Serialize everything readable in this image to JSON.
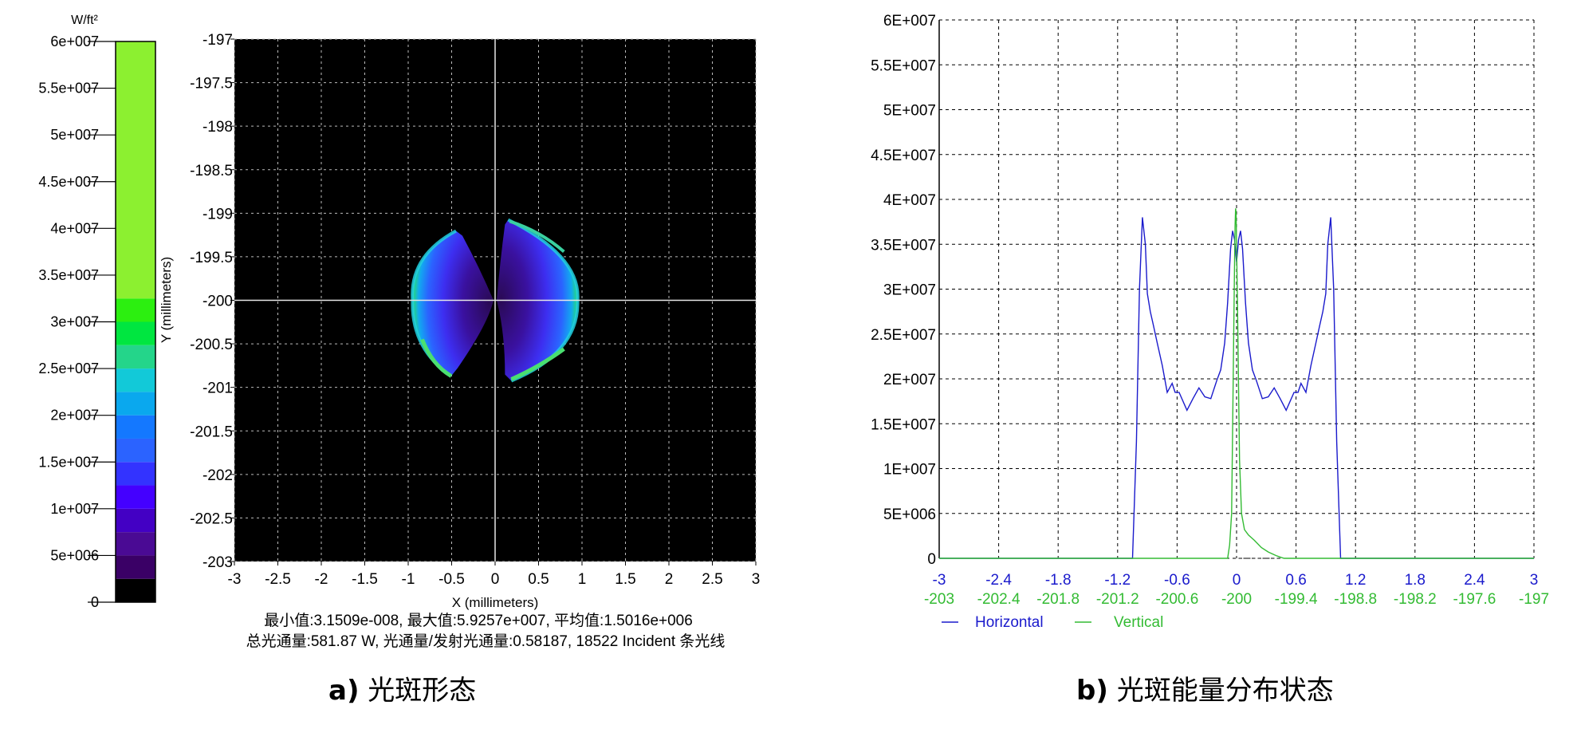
{
  "chart_data": [
    {
      "type": "heatmap",
      "colorbar": {
        "unit": "W/ft²",
        "ticks": [
          "0",
          "5e+006",
          "1e+007",
          "1.5e+007",
          "2e+007",
          "2.5e+007",
          "3e+007",
          "3.5e+007",
          "4e+007",
          "4.5e+007",
          "5e+007",
          "5.5e+007",
          "6e+007"
        ],
        "range": [
          0,
          60000000
        ],
        "colors": [
          "#000000",
          "#3a0066",
          "#4a0a94",
          "#4300c4",
          "#4400ff",
          "#3333ff",
          "#2b63ff",
          "#1478ff",
          "#0aa8ee",
          "#12c9d8",
          "#24d58a",
          "#00e640",
          "#2cef10",
          "#8cf030"
        ]
      },
      "xlabel": "X (millimeters)",
      "ylabel": "Y (millimeters)",
      "xlim": [
        -3,
        3
      ],
      "ylim": [
        -203,
        -197
      ],
      "xticks": [
        "-3",
        "-2.5",
        "-2",
        "-1.5",
        "-1",
        "-0.5",
        "0",
        "0.5",
        "1",
        "1.5",
        "2",
        "2.5",
        "3"
      ],
      "yticks": [
        "-197",
        "-197.5",
        "-198",
        "-198.5",
        "-199",
        "-199.5",
        "-200",
        "-200.5",
        "-201",
        "-201.5",
        "-202",
        "-202.5",
        "-203"
      ],
      "grid": true,
      "crosshair": [
        0,
        -200
      ],
      "stats_line1": "最小值:3.1509e-008, 最大值:5.9257e+007, 平均值:1.5016e+006",
      "stats_line2": "总光通量:581.87 W, 光通量/发射光通量:0.58187, 18522 Incident 条光线",
      "spot": {
        "center": [
          0,
          -200
        ],
        "left_lobe_x": [
          -0.95,
          -0.45
        ],
        "right_lobe_x": [
          0.15,
          0.95
        ],
        "y_range": [
          -200.9,
          -199.05
        ],
        "peak": 59257000
      },
      "caption_prefix": "a)",
      "caption_text": "光斑形态"
    },
    {
      "type": "line",
      "yticks": [
        "0",
        "5E+006",
        "1E+007",
        "1.5E+007",
        "2E+007",
        "2.5E+007",
        "3E+007",
        "3.5E+007",
        "4E+007",
        "4.5E+007",
        "5E+007",
        "5.5E+007",
        "6E+007"
      ],
      "ylim": [
        0,
        60000000
      ],
      "xlim": [
        -3,
        3
      ],
      "grid": true,
      "x_ticks_horizontal": [
        "-3",
        "-2.4",
        "-1.8",
        "-1.2",
        "-0.6",
        "0",
        "0.6",
        "1.2",
        "1.8",
        "2.4",
        "3"
      ],
      "x_ticks_vertical": [
        "-203",
        "-202.4",
        "-201.8",
        "-201.2",
        "-200.6",
        "-200",
        "-199.4",
        "-198.8",
        "-198.2",
        "-197.6",
        "-197"
      ],
      "series": [
        {
          "name": "Horizontal",
          "color": "#1a1acc",
          "x": [
            -3,
            -1.05,
            -1.01,
            -0.98,
            -0.95,
            -0.92,
            -0.9,
            -0.87,
            -0.84,
            -0.8,
            -0.75,
            -0.7,
            -0.65,
            -0.62,
            -0.58,
            -0.5,
            -0.44,
            -0.38,
            -0.32,
            -0.26,
            -0.2,
            -0.16,
            -0.12,
            -0.09,
            -0.06,
            -0.04,
            -0.02,
            0,
            0.02,
            0.04,
            0.06,
            0.09,
            0.12,
            0.16,
            0.2,
            0.26,
            0.32,
            0.38,
            0.44,
            0.5,
            0.58,
            0.62,
            0.65,
            0.7,
            0.75,
            0.8,
            0.84,
            0.87,
            0.9,
            0.92,
            0.95,
            0.98,
            1.01,
            1.05,
            3
          ],
          "y": [
            0,
            0,
            13000000,
            30000000,
            38000000,
            35000000,
            29500000,
            27500000,
            26000000,
            24000000,
            21500000,
            18500000,
            19500000,
            18500000,
            18500000,
            16500000,
            17800000,
            19000000,
            18000000,
            17800000,
            19800000,
            21000000,
            24000000,
            28500000,
            34500000,
            36500000,
            35500000,
            33000000,
            35500000,
            36500000,
            34500000,
            28500000,
            24000000,
            21000000,
            19800000,
            17800000,
            18000000,
            19000000,
            17800000,
            16500000,
            18500000,
            18500000,
            19500000,
            18500000,
            21500000,
            24000000,
            26000000,
            27500000,
            29500000,
            35000000,
            38000000,
            30000000,
            13000000,
            0,
            0
          ]
        },
        {
          "name": "Vertical",
          "color": "#33bb33",
          "x": [
            -3,
            -0.09,
            -0.07,
            -0.05,
            -0.04,
            -0.03,
            -0.02,
            -0.015,
            -0.01,
            -0.005,
            0,
            0.01,
            0.02,
            0.03,
            0.05,
            0.08,
            0.12,
            0.18,
            0.25,
            0.32,
            0.4,
            0.45,
            0.48,
            3
          ],
          "y": [
            0,
            0,
            1500000,
            5000000,
            14000000,
            24000000,
            33000000,
            37000000,
            39000000,
            38500000,
            35000000,
            28000000,
            19000000,
            11000000,
            5000000,
            3200000,
            2600000,
            2000000,
            1200000,
            700000,
            300000,
            100000,
            0,
            0
          ]
        }
      ],
      "caption_prefix": "b)",
      "caption_text": "光斑能量分布状态"
    }
  ]
}
